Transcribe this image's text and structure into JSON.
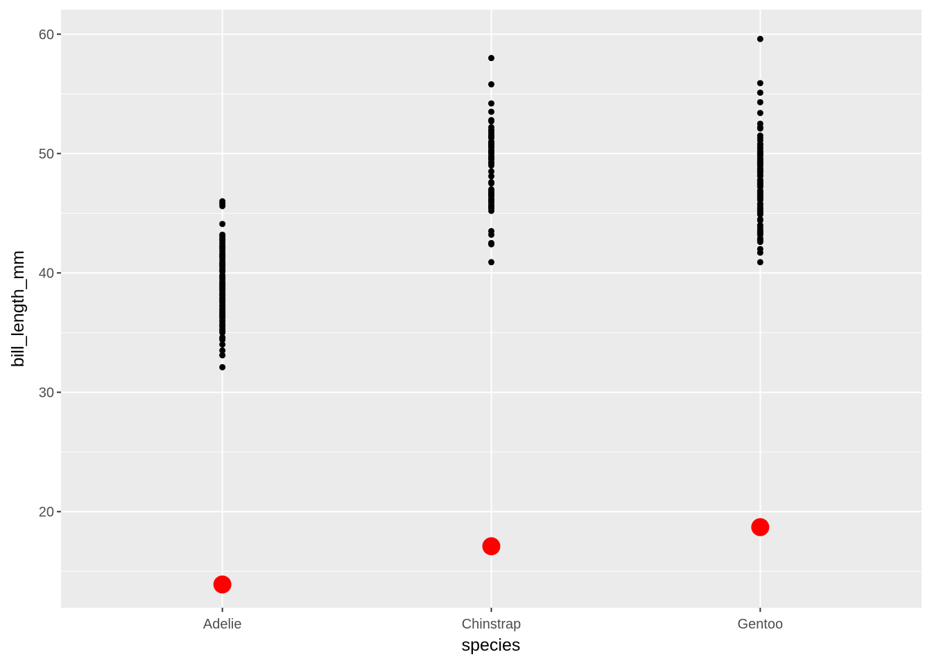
{
  "chart_data": {
    "type": "scatter",
    "xlabel": "species",
    "ylabel": "bill_length_mm",
    "categories": [
      "Adelie",
      "Chinstrap",
      "Gentoo"
    ],
    "ylim": [
      11.95,
      62.05
    ],
    "y_ticks": [
      20,
      30,
      40,
      50,
      60
    ],
    "y_tick_labels": [
      "20",
      "30",
      "40",
      "50",
      "60"
    ],
    "grid": true,
    "background": "#ebebeb",
    "grid_color": "#ffffff",
    "series": [
      {
        "marker_color": "#000000",
        "marker": "small-dot",
        "points": [
          {
            "category": "Adelie",
            "values": [
              32.1,
              33.1,
              33.5,
              34.0,
              34.4,
              34.5,
              34.6,
              35.0,
              35.1,
              35.2,
              35.3,
              35.5,
              35.6,
              35.7,
              35.9,
              36.0,
              36.2,
              36.3,
              36.4,
              36.5,
              36.6,
              36.7,
              36.8,
              36.9,
              37.0,
              37.2,
              37.3,
              37.5,
              37.6,
              37.7,
              37.8,
              37.9,
              38.1,
              38.2,
              38.3,
              38.5,
              38.6,
              38.7,
              38.8,
              38.9,
              39.0,
              39.1,
              39.2,
              39.3,
              39.5,
              39.6,
              39.7,
              39.8,
              40.1,
              40.2,
              40.3,
              40.5,
              40.6,
              40.7,
              40.8,
              40.9,
              41.1,
              41.3,
              41.4,
              41.5,
              41.6,
              41.8,
              42.0,
              42.1,
              42.2,
              42.3,
              42.5,
              42.7,
              42.8,
              42.9,
              43.1,
              43.2,
              44.1,
              45.6,
              45.8,
              46.0
            ]
          },
          {
            "category": "Chinstrap",
            "values": [
              40.9,
              42.4,
              42.5,
              43.2,
              43.5,
              45.2,
              45.4,
              45.5,
              45.6,
              45.7,
              45.9,
              46.0,
              46.1,
              46.2,
              46.4,
              46.5,
              46.6,
              46.7,
              46.8,
              46.9,
              47.0,
              47.5,
              47.6,
              48.1,
              48.5,
              49.0,
              49.2,
              49.3,
              49.5,
              49.6,
              49.7,
              49.8,
              50.0,
              50.1,
              50.2,
              50.3,
              50.5,
              50.6,
              50.7,
              50.8,
              50.9,
              51.0,
              51.3,
              51.4,
              51.5,
              51.7,
              51.9,
              52.0,
              52.2,
              52.7,
              52.8,
              53.5,
              54.2,
              55.8,
              58.0
            ]
          },
          {
            "category": "Gentoo",
            "values": [
              40.9,
              41.7,
              42.0,
              42.6,
              42.7,
              42.8,
              42.9,
              43.2,
              43.3,
              43.4,
              43.5,
              43.6,
              43.8,
              44.0,
              44.4,
              44.5,
              44.9,
              45.0,
              45.1,
              45.2,
              45.3,
              45.4,
              45.5,
              45.7,
              45.8,
              46.1,
              46.2,
              46.3,
              46.4,
              46.5,
              46.6,
              46.7,
              46.8,
              46.9,
              47.2,
              47.3,
              47.4,
              47.5,
              47.6,
              47.7,
              47.8,
              48.1,
              48.2,
              48.4,
              48.5,
              48.6,
              48.7,
              48.8,
              49.0,
              49.1,
              49.2,
              49.3,
              49.4,
              49.5,
              49.6,
              49.8,
              49.9,
              50.0,
              50.1,
              50.2,
              50.4,
              50.5,
              50.7,
              50.8,
              51.1,
              51.3,
              51.5,
              52.1,
              52.2,
              52.5,
              53.4,
              54.3,
              55.1,
              55.9,
              59.6
            ]
          }
        ]
      },
      {
        "marker_color": "#ff0000",
        "marker": "large-dot",
        "points": [
          {
            "category": "Adelie",
            "values": [
              13.9
            ]
          },
          {
            "category": "Chinstrap",
            "values": [
              17.1
            ]
          },
          {
            "category": "Gentoo",
            "values": [
              18.7
            ]
          }
        ]
      }
    ]
  }
}
